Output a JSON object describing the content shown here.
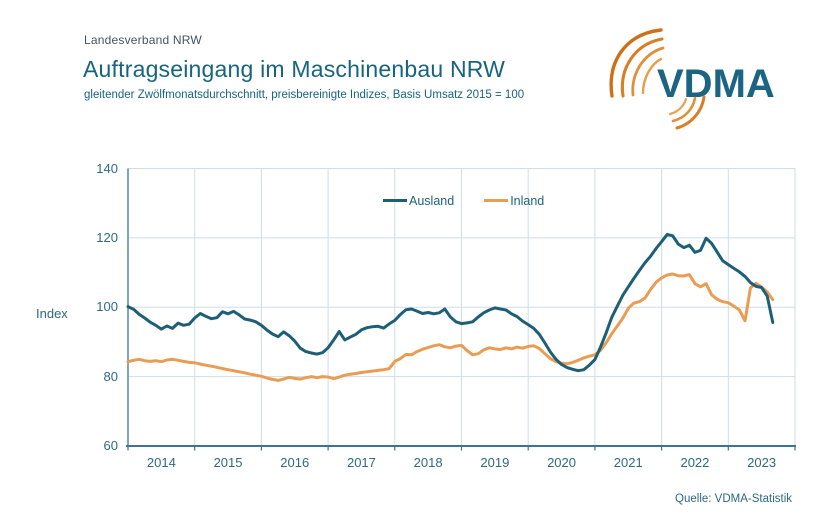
{
  "header": {
    "org": "Landesverband NRW",
    "title": "Auftragseingang im Maschinenbau NRW",
    "subtitle": "gleitender Zwölfmonatsdurchschnitt, preisbereinigte Indizes, Basis Umsatz 2015 = 100"
  },
  "logo": {
    "text": "VDMA"
  },
  "source": "Quelle: VDMA-Statistik",
  "colors": {
    "title_teal": "#17647f",
    "tick_teal": "#2e6a80",
    "ausland_line": "#1c5f77",
    "inland_line": "#e99c52",
    "grid": "#cfdde6",
    "axis": "#3d7590",
    "logo_orange_dark": "#ce7018",
    "logo_orange_light": "#eaa050",
    "logo_teal": "#1b6583"
  },
  "chart_data": {
    "type": "line",
    "title": "Auftragseingang im Maschinenbau NRW",
    "subtitle": "gleitender Zwölfmonatsdurchschnitt, preisbereinigte Indizes, Basis Umsatz 2015 = 100",
    "ylabel": "Index",
    "ylim": [
      60,
      140
    ],
    "yticks": [
      140,
      120,
      100,
      80,
      60
    ],
    "xticklabels": [
      "2014",
      "2015",
      "2016",
      "2017",
      "2018",
      "2019",
      "2020",
      "2021",
      "2022",
      "2023"
    ],
    "frequency": "monthly",
    "x_start": "2014-01",
    "x_end": "2023-09",
    "grid": true,
    "legend_position": "top-center-inside",
    "series": [
      {
        "name": "Ausland",
        "color": "#1c5f77",
        "values": [
          100.2,
          99.4,
          98.0,
          96.9,
          95.7,
          94.8,
          93.7,
          94.6,
          93.9,
          95.4,
          94.8,
          95.1,
          96.9,
          98.2,
          97.4,
          96.7,
          97.0,
          98.7,
          98.1,
          98.8,
          97.8,
          96.6,
          96.3,
          95.8,
          94.8,
          93.4,
          92.3,
          91.5,
          92.9,
          91.8,
          90.2,
          88.2,
          87.2,
          86.8,
          86.5,
          86.9,
          88.3,
          90.6,
          93.0,
          90.6,
          91.4,
          92.2,
          93.5,
          94.1,
          94.4,
          94.5,
          94.0,
          95.2,
          96.2,
          97.9,
          99.3,
          99.5,
          98.9,
          98.2,
          98.5,
          98.1,
          98.4,
          99.5,
          97.2,
          95.8,
          95.3,
          95.5,
          95.8,
          97.2,
          98.4,
          99.2,
          99.8,
          99.5,
          99.2,
          98.1,
          97.3,
          96.0,
          95.0,
          93.9,
          92.2,
          89.7,
          87.1,
          85.0,
          83.5,
          82.6,
          82.1,
          81.7,
          82.0,
          83.3,
          84.9,
          88.5,
          92.5,
          97.0,
          100.2,
          103.4,
          105.9,
          108.3,
          110.6,
          112.8,
          114.7,
          116.9,
          118.9,
          121.0,
          120.6,
          118.2,
          117.2,
          117.9,
          115.8,
          116.4,
          119.9,
          118.4,
          115.9,
          113.4,
          112.3,
          111.2,
          110.2,
          108.9,
          107.1,
          106.0,
          105.7,
          103.2,
          95.6
        ]
      },
      {
        "name": "Inland",
        "color": "#e99c52",
        "values": [
          84.3,
          84.7,
          85.0,
          84.6,
          84.4,
          84.6,
          84.3,
          84.8,
          85.0,
          84.7,
          84.4,
          84.1,
          84.0,
          83.6,
          83.3,
          83.0,
          82.7,
          82.3,
          82.0,
          81.7,
          81.4,
          81.1,
          80.7,
          80.4,
          80.1,
          79.6,
          79.2,
          78.9,
          79.3,
          79.8,
          79.5,
          79.3,
          79.7,
          80.0,
          79.7,
          80.0,
          79.9,
          79.4,
          79.9,
          80.4,
          80.7,
          80.9,
          81.2,
          81.4,
          81.6,
          81.8,
          82.0,
          82.3,
          84.4,
          85.2,
          86.4,
          86.3,
          87.2,
          87.9,
          88.4,
          88.9,
          89.2,
          88.6,
          88.3,
          88.8,
          89.0,
          87.5,
          86.3,
          86.6,
          87.7,
          88.3,
          88.0,
          87.8,
          88.3,
          88.0,
          88.5,
          88.2,
          88.7,
          88.9,
          88.1,
          86.6,
          85.2,
          84.3,
          83.9,
          83.7,
          84.1,
          84.7,
          85.4,
          85.9,
          86.3,
          87.6,
          89.7,
          92.3,
          94.5,
          96.8,
          99.7,
          101.2,
          101.6,
          102.6,
          105.1,
          107.2,
          108.5,
          109.3,
          109.6,
          109.1,
          109.0,
          109.4,
          106.8,
          105.9,
          106.8,
          103.6,
          102.3,
          101.6,
          101.3,
          100.3,
          99.2,
          96.1,
          105.6,
          106.9,
          105.8,
          104.4,
          102.2
        ]
      }
    ]
  }
}
